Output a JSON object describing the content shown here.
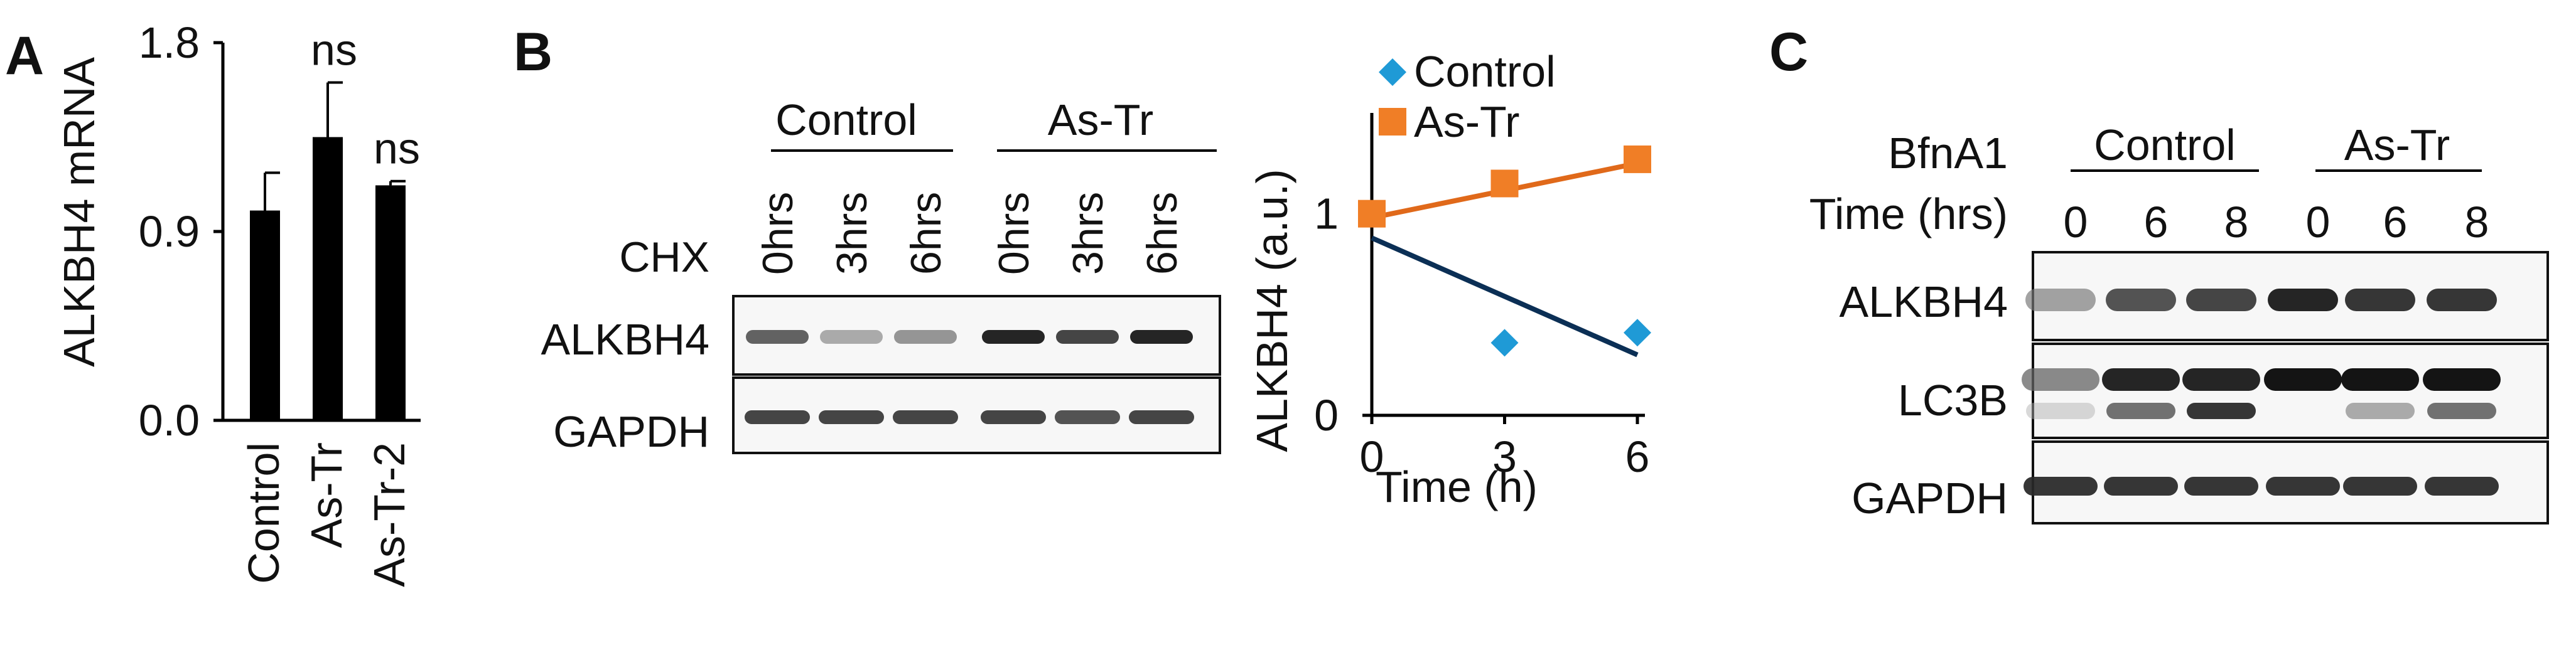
{
  "panels": {
    "a": "A",
    "b": "B",
    "c": "C"
  },
  "panel_a": {
    "chart_data": {
      "type": "bar",
      "categories": [
        "Control",
        "As-Tr",
        "As-Tr-2"
      ],
      "values": [
        1.0,
        1.35,
        1.12
      ],
      "errors": [
        0.18,
        0.26,
        0.02
      ],
      "annotations": [
        "",
        "ns",
        "ns"
      ],
      "ylabel": "ALKBH4 mRNA",
      "ylim": [
        0,
        1.8
      ],
      "yticks": [
        "0.0",
        "0.9",
        "1.8"
      ],
      "bar_color": "#000000"
    }
  },
  "panel_b": {
    "groups": [
      "Control",
      "As-Tr"
    ],
    "treatment_label": "CHX",
    "lanes": [
      "0hrs",
      "3hrs",
      "6hrs",
      "0hrs",
      "3hrs",
      "6hrs"
    ],
    "blots": [
      "ALKBH4",
      "GAPDH"
    ],
    "band_intensity": {
      "ALKBH4": [
        0.75,
        0.45,
        0.55,
        0.95,
        0.85,
        0.95
      ],
      "GAPDH": [
        0.85,
        0.85,
        0.85,
        0.85,
        0.8,
        0.85
      ]
    },
    "chart_data": {
      "type": "scatter",
      "xlabel": "Time (h)",
      "ylabel": "ALKBH4 (a.u.)",
      "xticks": [
        "0",
        "3",
        "6"
      ],
      "yticks": [
        "0",
        "1"
      ],
      "xlim": [
        0,
        6
      ],
      "ylim": [
        0,
        1.5
      ],
      "legend_position": "top",
      "series": [
        {
          "name": "Control",
          "marker": "diamond",
          "color": "#1f9ad6",
          "line_color": "#0b2f55",
          "x": [
            0,
            3,
            6
          ],
          "y": [
            1.0,
            0.36,
            0.41
          ],
          "trend": [
            [
              0,
              0.88
            ],
            [
              6,
              0.3
            ]
          ]
        },
        {
          "name": "As-Tr",
          "marker": "square",
          "color": "#f07e26",
          "line_color": "#e0691a",
          "x": [
            0,
            3,
            6
          ],
          "y": [
            1.0,
            1.15,
            1.27
          ],
          "trend": [
            [
              0,
              0.98
            ],
            [
              6,
              1.25
            ]
          ]
        }
      ]
    }
  },
  "panel_c": {
    "treatment_label": "BfnA1",
    "time_label": "Time (hrs)",
    "groups": [
      "Control",
      "As-Tr"
    ],
    "timepoints": [
      "0",
      "6",
      "8",
      "0",
      "6",
      "8"
    ],
    "blots": [
      "ALKBH4",
      "LC3B",
      "GAPDH"
    ],
    "band_intensity": {
      "ALKBH4": [
        0.5,
        0.8,
        0.85,
        0.95,
        0.9,
        0.9
      ],
      "LC3B_I": [
        0.6,
        0.95,
        0.95,
        1.0,
        1.0,
        1.0
      ],
      "LC3B_II": [
        0.2,
        0.7,
        0.9,
        0.0,
        0.45,
        0.7
      ],
      "GAPDH": [
        0.9,
        0.9,
        0.9,
        0.9,
        0.9,
        0.9
      ]
    }
  }
}
